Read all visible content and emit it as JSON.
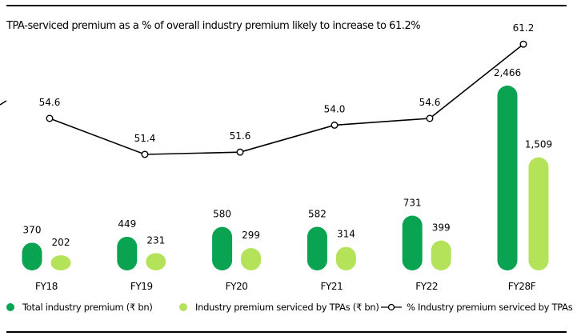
{
  "chart_data": {
    "type": "bar",
    "title": "TPA-serviced premium as a % of overall industry premium likely to increase to 61.2%",
    "categories": [
      "FY18",
      "FY19",
      "FY20",
      "FY21",
      "FY22",
      "FY28F"
    ],
    "series": [
      {
        "name": "Total industry premium (₹ bn)",
        "type": "bar",
        "color": "#0aa351",
        "values": [
          370,
          449,
          580,
          582,
          731,
          2466
        ],
        "labels": [
          "370",
          "449",
          "580",
          "582",
          "731",
          "2,466"
        ]
      },
      {
        "name": "Industry premium serviced by TPAs (₹ bn)",
        "type": "bar",
        "color": "#b4e35a",
        "values": [
          202,
          231,
          299,
          314,
          399,
          1509
        ],
        "labels": [
          "202",
          "231",
          "299",
          "314",
          "399",
          "1,509"
        ]
      },
      {
        "name": "% Industry premium serviced by TPAs",
        "type": "line",
        "color": "#000000",
        "values": [
          54.6,
          51.4,
          51.6,
          54.0,
          54.6,
          61.2
        ],
        "labels": [
          "54.6",
          "51.4",
          "51.6",
          "54.0",
          "54.6",
          "61.2"
        ]
      }
    ],
    "xlabel": "",
    "ylabel": "",
    "grid": false,
    "legend_position": "bottom"
  }
}
